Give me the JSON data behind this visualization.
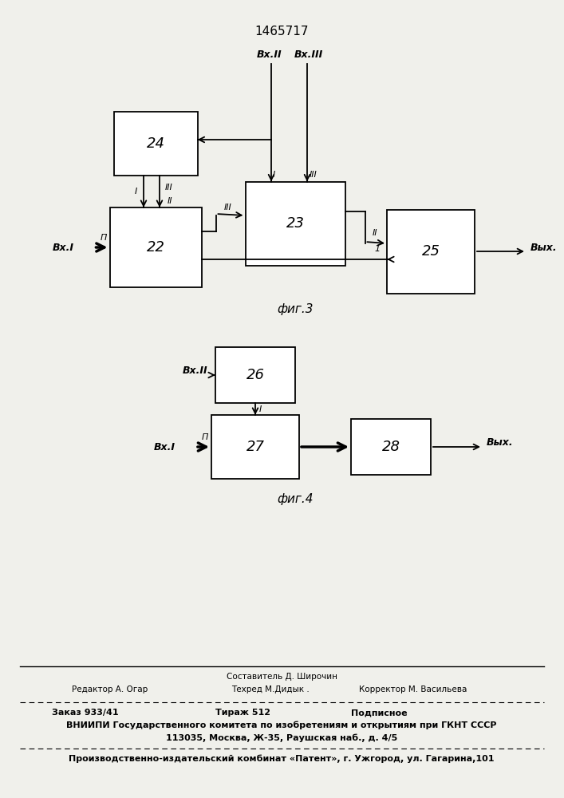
{
  "title": "1465717",
  "bg": "#f0f0eb",
  "fig3_label": "фиг.3",
  "fig4_label": "фиг.4",
  "footer_sestavitel": "Составитель Д. Широчин",
  "footer_redaktor": "Редактор А. Огар",
  "footer_tehred": "Техред М.Дидык .",
  "footer_korrektor": "Корректор М. Васильева",
  "footer_zakaz": "Заказ 933/41",
  "footer_tirazh": "Тираж 512",
  "footer_podp": "Подписное",
  "footer_vniip": "ВНИИПИ Государственного комитета по изобретениям и открытиям при ГКНТ СССР",
  "footer_addr": "113035, Москва, Ж-35, Раушская наб., д. 4/5",
  "footer_patent": "Производственно-издательский комбинат «Патент», г. Ужгород, ул. Гагарина,101"
}
